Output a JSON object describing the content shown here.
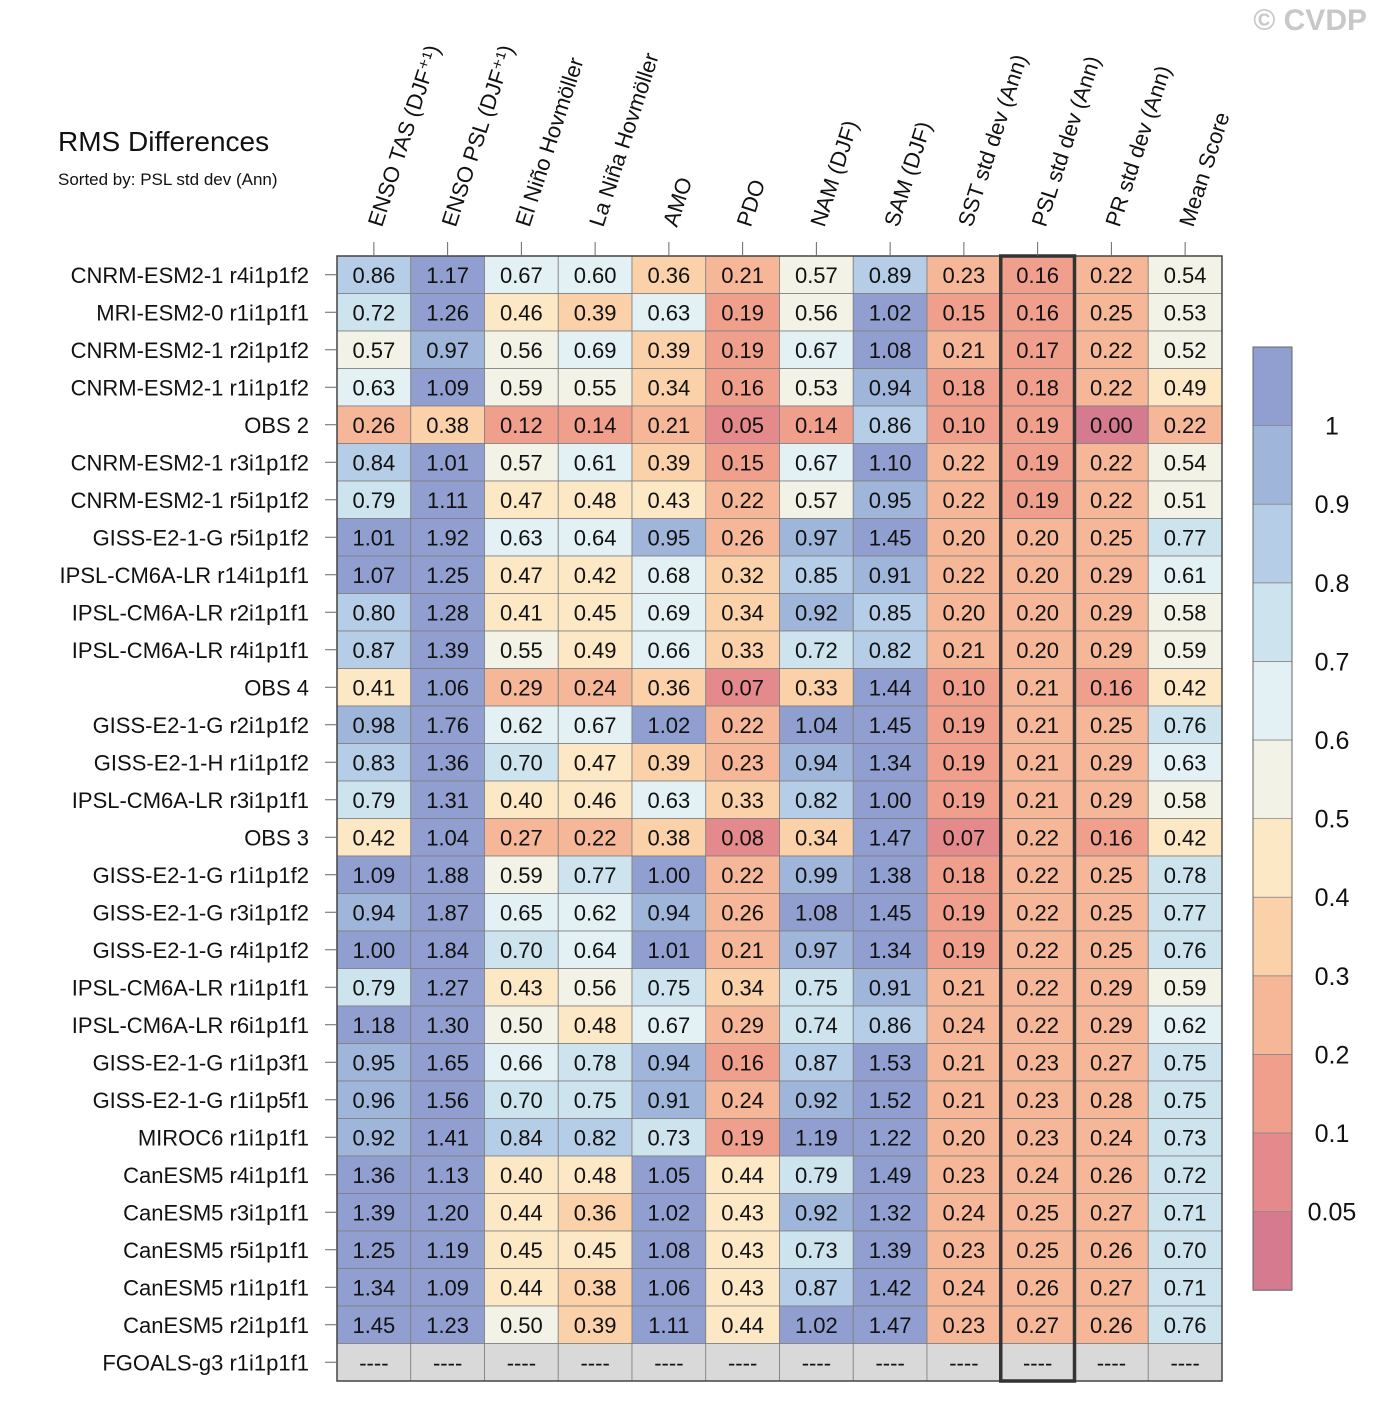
{
  "copyright": "© CVDP",
  "chart_data": {
    "type": "heatmap",
    "title": "RMS Differences",
    "subtitle": "Sorted by: PSL std dev (Ann)",
    "columns": [
      "ENSO TAS (DJF⁺¹)",
      "ENSO PSL (DJF⁺¹)",
      "El Niño Hovmöller",
      "La Niña Hovmöller",
      "AMO",
      "PDO",
      "NAM (DJF)",
      "SAM (DJF)",
      "SST std dev (Ann)",
      "PSL std dev (Ann)",
      "PR std dev (Ann)",
      "Mean Score"
    ],
    "highlighted_column": "PSL std dev (Ann)",
    "rows": [
      {
        "label": "CNRM-ESM2-1 r4i1p1f2",
        "values": [
          "0.86",
          "1.17",
          "0.67",
          "0.60",
          "0.36",
          "0.21",
          "0.57",
          "0.89",
          "0.23",
          "0.16",
          "0.22",
          "0.54"
        ]
      },
      {
        "label": "MRI-ESM2-0 r1i1p1f1",
        "values": [
          "0.72",
          "1.26",
          "0.46",
          "0.39",
          "0.63",
          "0.19",
          "0.56",
          "1.02",
          "0.15",
          "0.16",
          "0.25",
          "0.53"
        ]
      },
      {
        "label": "CNRM-ESM2-1 r2i1p1f2",
        "values": [
          "0.57",
          "0.97",
          "0.56",
          "0.69",
          "0.39",
          "0.19",
          "0.67",
          "1.08",
          "0.21",
          "0.17",
          "0.22",
          "0.52"
        ]
      },
      {
        "label": "CNRM-ESM2-1 r1i1p1f2",
        "values": [
          "0.63",
          "1.09",
          "0.59",
          "0.55",
          "0.34",
          "0.16",
          "0.53",
          "0.94",
          "0.18",
          "0.18",
          "0.22",
          "0.49"
        ]
      },
      {
        "label": "OBS 2",
        "values": [
          "0.26",
          "0.38",
          "0.12",
          "0.14",
          "0.21",
          "0.05",
          "0.14",
          "0.86",
          "0.10",
          "0.19",
          "0.00",
          "0.22"
        ]
      },
      {
        "label": "CNRM-ESM2-1 r3i1p1f2",
        "values": [
          "0.84",
          "1.01",
          "0.57",
          "0.61",
          "0.39",
          "0.15",
          "0.67",
          "1.10",
          "0.22",
          "0.19",
          "0.22",
          "0.54"
        ]
      },
      {
        "label": "CNRM-ESM2-1 r5i1p1f2",
        "values": [
          "0.79",
          "1.11",
          "0.47",
          "0.48",
          "0.43",
          "0.22",
          "0.57",
          "0.95",
          "0.22",
          "0.19",
          "0.22",
          "0.51"
        ]
      },
      {
        "label": "GISS-E2-1-G r5i1p1f2",
        "values": [
          "1.01",
          "1.92",
          "0.63",
          "0.64",
          "0.95",
          "0.26",
          "0.97",
          "1.45",
          "0.20",
          "0.20",
          "0.25",
          "0.77"
        ]
      },
      {
        "label": "IPSL-CM6A-LR r14i1p1f1",
        "values": [
          "1.07",
          "1.25",
          "0.47",
          "0.42",
          "0.68",
          "0.32",
          "0.85",
          "0.91",
          "0.22",
          "0.20",
          "0.29",
          "0.61"
        ]
      },
      {
        "label": "IPSL-CM6A-LR r2i1p1f1",
        "values": [
          "0.80",
          "1.28",
          "0.41",
          "0.45",
          "0.69",
          "0.34",
          "0.92",
          "0.85",
          "0.20",
          "0.20",
          "0.29",
          "0.58"
        ]
      },
      {
        "label": "IPSL-CM6A-LR r4i1p1f1",
        "values": [
          "0.87",
          "1.39",
          "0.55",
          "0.49",
          "0.66",
          "0.33",
          "0.72",
          "0.82",
          "0.21",
          "0.20",
          "0.29",
          "0.59"
        ]
      },
      {
        "label": "OBS 4",
        "values": [
          "0.41",
          "1.06",
          "0.29",
          "0.24",
          "0.36",
          "0.07",
          "0.33",
          "1.44",
          "0.10",
          "0.21",
          "0.16",
          "0.42"
        ]
      },
      {
        "label": "GISS-E2-1-G r2i1p1f2",
        "values": [
          "0.98",
          "1.76",
          "0.62",
          "0.67",
          "1.02",
          "0.22",
          "1.04",
          "1.45",
          "0.19",
          "0.21",
          "0.25",
          "0.76"
        ]
      },
      {
        "label": "GISS-E2-1-H r1i1p1f2",
        "values": [
          "0.83",
          "1.36",
          "0.70",
          "0.47",
          "0.39",
          "0.23",
          "0.94",
          "1.34",
          "0.19",
          "0.21",
          "0.29",
          "0.63"
        ]
      },
      {
        "label": "IPSL-CM6A-LR r3i1p1f1",
        "values": [
          "0.79",
          "1.31",
          "0.40",
          "0.46",
          "0.63",
          "0.33",
          "0.82",
          "1.00",
          "0.19",
          "0.21",
          "0.29",
          "0.58"
        ]
      },
      {
        "label": "OBS 3",
        "values": [
          "0.42",
          "1.04",
          "0.27",
          "0.22",
          "0.38",
          "0.08",
          "0.34",
          "1.47",
          "0.07",
          "0.22",
          "0.16",
          "0.42"
        ]
      },
      {
        "label": "GISS-E2-1-G r1i1p1f2",
        "values": [
          "1.09",
          "1.88",
          "0.59",
          "0.77",
          "1.00",
          "0.22",
          "0.99",
          "1.38",
          "0.18",
          "0.22",
          "0.25",
          "0.78"
        ]
      },
      {
        "label": "GISS-E2-1-G r3i1p1f2",
        "values": [
          "0.94",
          "1.87",
          "0.65",
          "0.62",
          "0.94",
          "0.26",
          "1.08",
          "1.45",
          "0.19",
          "0.22",
          "0.25",
          "0.77"
        ]
      },
      {
        "label": "GISS-E2-1-G r4i1p1f2",
        "values": [
          "1.00",
          "1.84",
          "0.70",
          "0.64",
          "1.01",
          "0.21",
          "0.97",
          "1.34",
          "0.19",
          "0.22",
          "0.25",
          "0.76"
        ]
      },
      {
        "label": "IPSL-CM6A-LR r1i1p1f1",
        "values": [
          "0.79",
          "1.27",
          "0.43",
          "0.56",
          "0.75",
          "0.34",
          "0.75",
          "0.91",
          "0.21",
          "0.22",
          "0.29",
          "0.59"
        ]
      },
      {
        "label": "IPSL-CM6A-LR r6i1p1f1",
        "values": [
          "1.18",
          "1.30",
          "0.50",
          "0.48",
          "0.67",
          "0.29",
          "0.74",
          "0.86",
          "0.24",
          "0.22",
          "0.29",
          "0.62"
        ]
      },
      {
        "label": "GISS-E2-1-G r1i1p3f1",
        "values": [
          "0.95",
          "1.65",
          "0.66",
          "0.78",
          "0.94",
          "0.16",
          "0.87",
          "1.53",
          "0.21",
          "0.23",
          "0.27",
          "0.75"
        ]
      },
      {
        "label": "GISS-E2-1-G r1i1p5f1",
        "values": [
          "0.96",
          "1.56",
          "0.70",
          "0.75",
          "0.91",
          "0.24",
          "0.92",
          "1.52",
          "0.21",
          "0.23",
          "0.28",
          "0.75"
        ]
      },
      {
        "label": "MIROC6 r1i1p1f1",
        "values": [
          "0.92",
          "1.41",
          "0.84",
          "0.82",
          "0.73",
          "0.19",
          "1.19",
          "1.22",
          "0.20",
          "0.23",
          "0.24",
          "0.73"
        ]
      },
      {
        "label": "CanESM5 r4i1p1f1",
        "values": [
          "1.36",
          "1.13",
          "0.40",
          "0.48",
          "1.05",
          "0.44",
          "0.79",
          "1.49",
          "0.23",
          "0.24",
          "0.26",
          "0.72"
        ]
      },
      {
        "label": "CanESM5 r3i1p1f1",
        "values": [
          "1.39",
          "1.20",
          "0.44",
          "0.36",
          "1.02",
          "0.43",
          "0.92",
          "1.32",
          "0.24",
          "0.25",
          "0.27",
          "0.71"
        ]
      },
      {
        "label": "CanESM5 r5i1p1f1",
        "values": [
          "1.25",
          "1.19",
          "0.45",
          "0.45",
          "1.08",
          "0.43",
          "0.73",
          "1.39",
          "0.23",
          "0.25",
          "0.26",
          "0.70"
        ]
      },
      {
        "label": "CanESM5 r1i1p1f1",
        "values": [
          "1.34",
          "1.09",
          "0.44",
          "0.38",
          "1.06",
          "0.43",
          "0.87",
          "1.42",
          "0.24",
          "0.26",
          "0.27",
          "0.71"
        ]
      },
      {
        "label": "CanESM5 r2i1p1f1",
        "values": [
          "1.45",
          "1.23",
          "0.50",
          "0.39",
          "1.11",
          "0.44",
          "1.02",
          "1.47",
          "0.23",
          "0.27",
          "0.26",
          "0.76"
        ]
      },
      {
        "label": "FGOALS-g3 r1i1p1f1",
        "values": [
          "----",
          "----",
          "----",
          "----",
          "----",
          "----",
          "----",
          "----",
          "----",
          "----",
          "----",
          "----"
        ]
      }
    ],
    "missing_color": "#d9d9d9",
    "colorbar": {
      "levels": [
        0.05,
        0.1,
        0.2,
        0.3,
        0.4,
        0.5,
        0.6,
        0.7,
        0.8,
        0.9,
        1
      ],
      "labels": [
        "0.05",
        "0.1",
        "0.2",
        "0.3",
        "0.4",
        "0.5",
        "0.6",
        "0.7",
        "0.8",
        "0.9",
        "1"
      ],
      "colors": [
        "#d57a8f",
        "#e48a8c",
        "#ef9f8c",
        "#f5b797",
        "#fad1a8",
        "#fde8c6",
        "#f3f2e6",
        "#e3f0f4",
        "#cde4ef",
        "#b5cde6",
        "#9fb5da",
        "#909fcf"
      ]
    }
  }
}
